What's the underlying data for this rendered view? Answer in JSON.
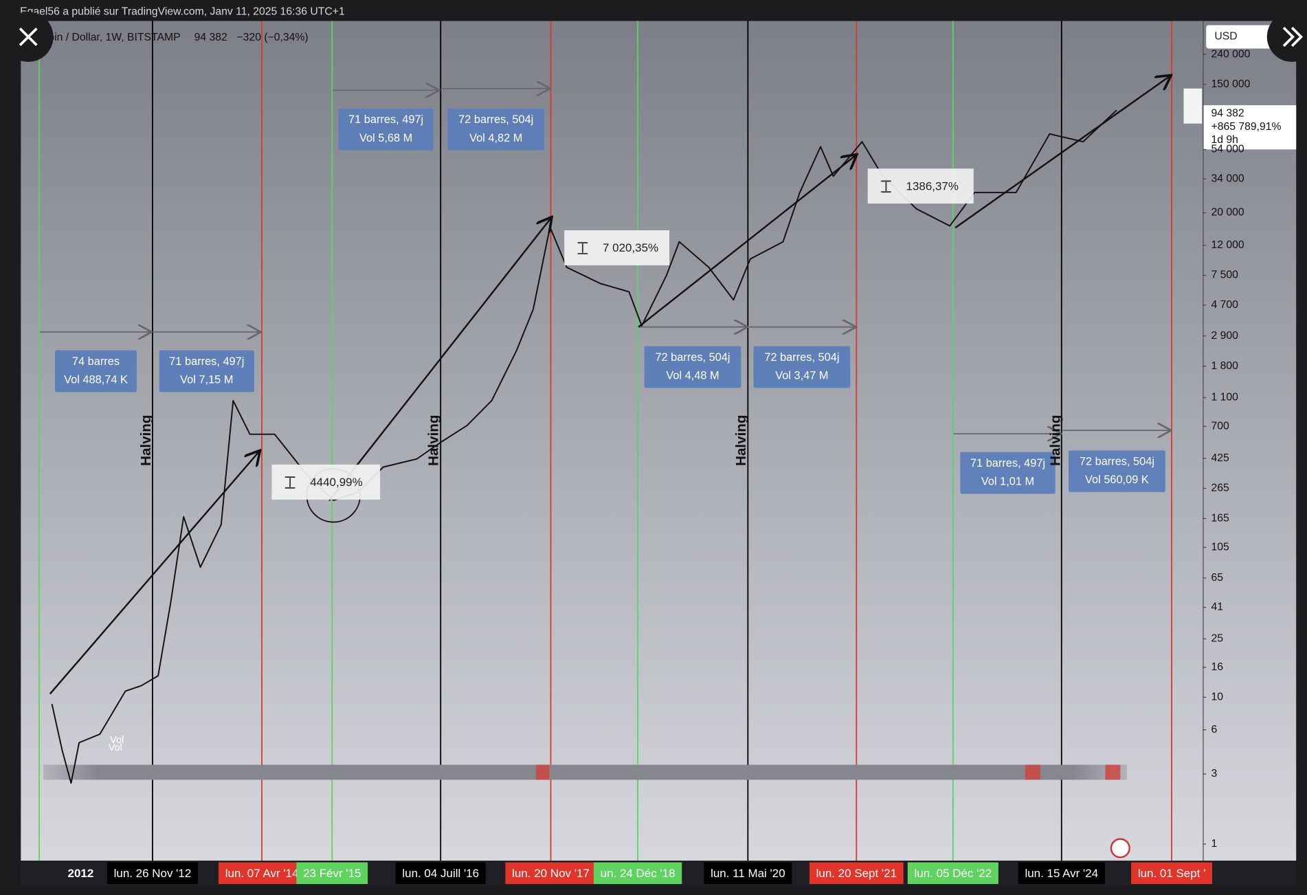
{
  "header": {
    "text": "Egael56 a publié sur TradingView.com, Janv 11, 2025 16:36 UTC+1"
  },
  "chart_data": {
    "type": "line",
    "title": "oin / Dollar, 1W, BITSTAMP",
    "last": "94 382",
    "change": "−320 (−0,34%)",
    "currency": "USD",
    "price_label": [
      "94 382",
      "+865 789,91%",
      "1d 9h"
    ],
    "color": "#111111",
    "log_scale": true,
    "grid": false,
    "x": [
      2011.64,
      2011.77,
      2011.88,
      2011.98,
      2012.24,
      2012.56,
      2012.76,
      2012.97,
      2013.13,
      2013.29,
      2013.5,
      2013.76,
      2013.91,
      2014.12,
      2014.43,
      2014.85,
      2015.17,
      2015.48,
      2015.79,
      2016.21,
      2016.52,
      2016.84,
      2017.15,
      2017.46,
      2017.67,
      2017.88,
      2018.09,
      2018.51,
      2018.87,
      2019.03,
      2019.34,
      2019.5,
      2019.87,
      2020.18,
      2020.39,
      2020.8,
      2021.01,
      2021.27,
      2021.43,
      2021.79,
      2022.05,
      2022.47,
      2022.89,
      2023.2,
      2023.72,
      2024.14,
      2024.56,
      2024.98
    ],
    "values": [
      9,
      4.3,
      2.6,
      4.9,
      5.6,
      11,
      12,
      14,
      45,
      170,
      77,
      150,
      1050,
      620,
      620,
      320,
      220,
      250,
      370,
      420,
      550,
      710,
      1050,
      2300,
      4400,
      16000,
      8500,
      6600,
      5800,
      3400,
      7500,
      12700,
      8500,
      5100,
      9700,
      12700,
      27500,
      56500,
      35500,
      61000,
      35500,
      21300,
      16300,
      27500,
      27500,
      69000,
      61000,
      100000
    ],
    "xlim": [
      2011.25,
      2026.06
    ],
    "ylim": [
      0.77,
      390000
    ],
    "xticks": [
      {
        "value": 2012.0,
        "label": "2012"
      },
      {
        "value": 2012.9,
        "label": "lun. 26 Nov '12"
      },
      {
        "value": 2014.27,
        "label": "lun. 07 Avr '14"
      },
      {
        "value": 2015.15,
        "label": "23 Févr '15"
      },
      {
        "value": 2016.51,
        "label": "lun. 04 Juill '16"
      },
      {
        "value": 2017.89,
        "label": "lun. 20 Nov '17"
      },
      {
        "value": 2018.98,
        "label": "un. 24 Déc '18"
      },
      {
        "value": 2020.36,
        "label": "lun. 11 Mai '20"
      },
      {
        "value": 2021.72,
        "label": "lun. 20 Sept '21"
      },
      {
        "value": 2022.93,
        "label": "lun. 05 Déc '22"
      },
      {
        "value": 2024.29,
        "label": "lun. 15 Avr '24"
      },
      {
        "value": 2025.67,
        "label": "lun. 01 Sept '"
      }
    ],
    "xtick_colors": [
      "#202024",
      "#000000",
      "#e0352b",
      "#5fd35f",
      "#000000",
      "#e0352b",
      "#5fd35f",
      "#000000",
      "#e0352b",
      "#5fd35f",
      "#000000",
      "#e0352b"
    ],
    "vertical_lines": [
      {
        "x": 2011.48,
        "color": "#5fd35f"
      },
      {
        "x": 2012.9,
        "color": "#000000"
      },
      {
        "x": 2014.27,
        "color": "#e0352b"
      },
      {
        "x": 2015.15,
        "color": "#5fd35f"
      },
      {
        "x": 2016.51,
        "color": "#000000"
      },
      {
        "x": 2017.89,
        "color": "#e0352b"
      },
      {
        "x": 2018.98,
        "color": "#5fd35f"
      },
      {
        "x": 2020.36,
        "color": "#000000"
      },
      {
        "x": 2021.72,
        "color": "#e0352b"
      },
      {
        "x": 2022.93,
        "color": "#5fd35f"
      },
      {
        "x": 2024.29,
        "color": "#000000"
      },
      {
        "x": 2025.67,
        "color": "#e0352b"
      }
    ],
    "yticks": [
      {
        "value": 240000,
        "label": "240 000"
      },
      {
        "value": 150000,
        "label": "150 000"
      },
      {
        "value": 54000,
        "label": "54 000"
      },
      {
        "value": 34000,
        "label": "34 000"
      },
      {
        "value": 20000,
        "label": "20 000"
      },
      {
        "value": 12000,
        "label": "12 000"
      },
      {
        "value": 7500,
        "label": "7 500"
      },
      {
        "value": 4700,
        "label": "4 700"
      },
      {
        "value": 2900,
        "label": "2 900"
      },
      {
        "value": 1800,
        "label": "1 800"
      },
      {
        "value": 1100,
        "label": "1 100"
      },
      700,
      425,
      265,
      165,
      105,
      65,
      41,
      25,
      16,
      10,
      6,
      3,
      1
    ],
    "measure_boxes": [
      [
        "74 barres",
        "Vol 488,74 K"
      ],
      [
        "71 barres, 497j",
        "Vol 7,15 M"
      ],
      [
        "71 barres, 497j",
        "Vol 5,68 M"
      ],
      [
        "72 barres, 504j",
        "Vol 4,82 M"
      ],
      [
        "72 barres, 504j",
        "Vol 4,48 M"
      ],
      [
        "72 barres, 504j",
        "Vol 3,47 M"
      ],
      [
        "71 barres, 497j",
        "Vol 1,01 M"
      ],
      [
        "72 barres, 504j",
        "Vol 560,09 K"
      ]
    ],
    "percent_labels": [
      "4440,99%",
      "7 020,35%",
      "1386,37%"
    ],
    "halving_labels": [
      "Halving",
      "Halving",
      "Halving",
      "Halving"
    ],
    "volume_labels": [
      "Vol",
      "Vol"
    ]
  }
}
